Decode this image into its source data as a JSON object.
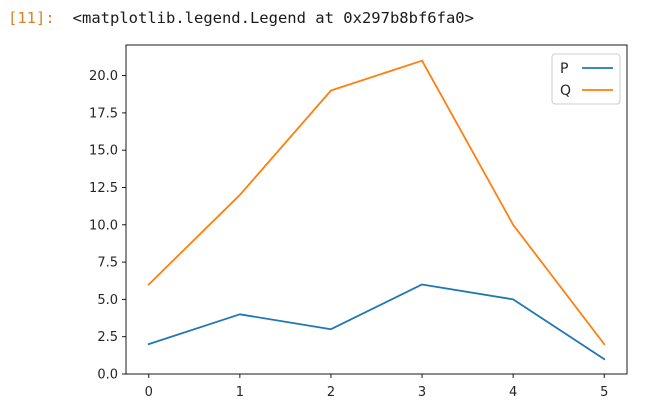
{
  "cell": {
    "prompt": "[11]:",
    "output": "<matplotlib.legend.Legend at 0x297b8bf6fa0>"
  },
  "chart_data": {
    "type": "line",
    "x": [
      0,
      1,
      2,
      3,
      4,
      5
    ],
    "series": [
      {
        "name": "P",
        "color": "#1f77b4",
        "values": [
          2,
          4,
          3,
          6,
          5,
          1
        ]
      },
      {
        "name": "Q",
        "color": "#ff7f0e",
        "values": [
          6,
          12,
          19,
          21,
          10,
          2
        ]
      }
    ],
    "title": "",
    "xlabel": "",
    "ylabel": "",
    "xlim": [
      -0.25,
      5.25
    ],
    "ylim": [
      0,
      22.05
    ],
    "xticks": [
      0,
      1,
      2,
      3,
      4,
      5
    ],
    "xtick_labels": [
      "0",
      "1",
      "2",
      "3",
      "4",
      "5"
    ],
    "yticks": [
      0,
      2.5,
      5,
      7.5,
      10,
      12.5,
      15,
      17.5,
      20
    ],
    "ytick_labels": [
      "0.0",
      "2.5",
      "5.0",
      "7.5",
      "10.0",
      "12.5",
      "15.0",
      "17.5",
      "20.0"
    ],
    "grid": false,
    "legend_position": "top-right"
  }
}
